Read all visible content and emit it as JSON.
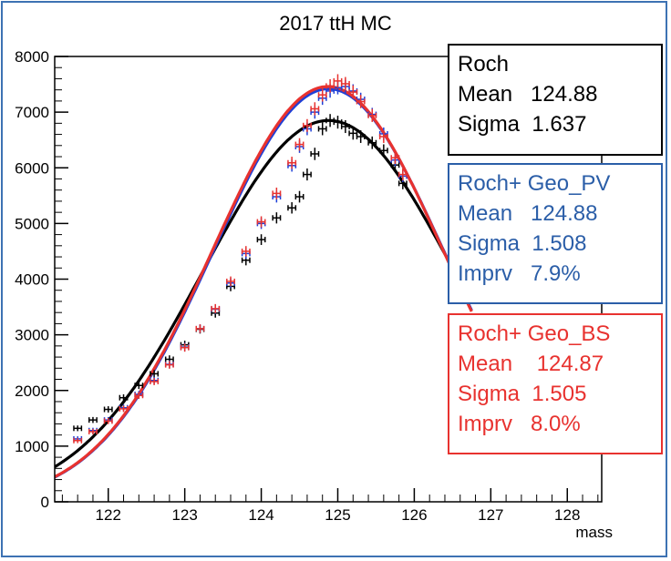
{
  "chart_data": {
    "type": "scatter",
    "title": "2017 ttH MC",
    "xlabel": "mass",
    "ylabel": "",
    "xlim": [
      121.3,
      128.45
    ],
    "ylim": [
      0,
      8000
    ],
    "x_ticks": [
      "122",
      "123",
      "124",
      "125",
      "126",
      "127",
      "128"
    ],
    "y_ticks": [
      "0",
      "1000",
      "2000",
      "3000",
      "4000",
      "5000",
      "6000",
      "7000",
      "8000"
    ],
    "grid": false,
    "series": [
      {
        "name": "Roch",
        "color": "#000000",
        "fit": {
          "mean": 124.88,
          "sigma": 1.637,
          "peak": 6850,
          "x_range": [
            121.3,
            126.75
          ]
        },
        "points": [
          [
            121.6,
            1320
          ],
          [
            121.8,
            1470
          ],
          [
            122.0,
            1660
          ],
          [
            122.2,
            1870
          ],
          [
            122.4,
            2090
          ],
          [
            122.6,
            2300
          ],
          [
            122.8,
            2560
          ],
          [
            123.0,
            2820
          ],
          [
            123.2,
            3100
          ],
          [
            123.4,
            3390
          ],
          [
            123.6,
            3870
          ],
          [
            123.8,
            4340
          ],
          [
            124.0,
            4710
          ],
          [
            124.2,
            5100
          ],
          [
            124.4,
            5280
          ],
          [
            124.5,
            5480
          ],
          [
            124.6,
            5880
          ],
          [
            124.7,
            6250
          ],
          [
            124.8,
            6700
          ],
          [
            124.9,
            6850
          ],
          [
            125.0,
            6820
          ],
          [
            125.1,
            6740
          ],
          [
            125.2,
            6620
          ],
          [
            125.3,
            6560
          ],
          [
            125.45,
            6450
          ],
          [
            125.6,
            6310
          ],
          [
            125.75,
            6050
          ],
          [
            125.85,
            5720
          ]
        ]
      },
      {
        "name": "Roch+ Geo_PV",
        "color": "#1f3fd6",
        "fit": {
          "mean": 124.88,
          "sigma": 1.508,
          "peak": 7420,
          "x_range": [
            121.3,
            126.75
          ]
        },
        "points": [
          [
            121.6,
            1130
          ],
          [
            121.8,
            1280
          ],
          [
            122.0,
            1470
          ],
          [
            122.2,
            1690
          ],
          [
            122.4,
            1930
          ],
          [
            122.6,
            2180
          ],
          [
            122.8,
            2470
          ],
          [
            123.0,
            2780
          ],
          [
            123.2,
            3110
          ],
          [
            123.4,
            3460
          ],
          [
            123.6,
            3930
          ],
          [
            123.8,
            4460
          ],
          [
            124.0,
            5000
          ],
          [
            124.2,
            5480
          ],
          [
            124.4,
            6040
          ],
          [
            124.5,
            6380
          ],
          [
            124.6,
            6700
          ],
          [
            124.7,
            7000
          ],
          [
            124.8,
            7250
          ],
          [
            124.9,
            7380
          ],
          [
            125.0,
            7440
          ],
          [
            125.1,
            7460
          ],
          [
            125.2,
            7380
          ],
          [
            125.3,
            7230
          ],
          [
            125.45,
            6960
          ],
          [
            125.6,
            6610
          ],
          [
            125.75,
            6140
          ],
          [
            125.85,
            5850
          ]
        ]
      },
      {
        "name": "Roch+ Geo_BS",
        "color": "#e8322f",
        "fit": {
          "mean": 124.87,
          "sigma": 1.505,
          "peak": 7460,
          "x_range": [
            121.3,
            126.75
          ]
        },
        "points": [
          [
            121.6,
            1100
          ],
          [
            121.8,
            1260
          ],
          [
            122.0,
            1450
          ],
          [
            122.2,
            1670
          ],
          [
            122.4,
            1910
          ],
          [
            122.6,
            2160
          ],
          [
            122.8,
            2460
          ],
          [
            123.0,
            2770
          ],
          [
            123.2,
            3110
          ],
          [
            123.4,
            3470
          ],
          [
            123.6,
            3960
          ],
          [
            123.8,
            4500
          ],
          [
            124.0,
            5030
          ],
          [
            124.2,
            5540
          ],
          [
            124.4,
            6090
          ],
          [
            124.5,
            6420
          ],
          [
            124.6,
            6760
          ],
          [
            124.7,
            7060
          ],
          [
            124.8,
            7310
          ],
          [
            124.9,
            7470
          ],
          [
            125.0,
            7560
          ],
          [
            125.1,
            7510
          ],
          [
            125.2,
            7360
          ],
          [
            125.3,
            7190
          ],
          [
            125.45,
            6940
          ],
          [
            125.6,
            6560
          ],
          [
            125.75,
            6180
          ],
          [
            125.85,
            5880
          ]
        ]
      }
    ],
    "stat_boxes": [
      {
        "border": "#000000",
        "text_color": "#000000",
        "lines": [
          "Roch",
          "Mean   124.88",
          "Sigma  1.637"
        ]
      },
      {
        "border": "#2b5ea8",
        "text_color": "#2b5ea8",
        "lines": [
          "Roch+ Geo_PV",
          "Mean   124.88",
          "Sigma  1.508",
          "Imprv   7.9%"
        ]
      },
      {
        "border": "#e8322f",
        "text_color": "#e8322f",
        "lines": [
          "Roch+ Geo_BS",
          "Mean    124.87",
          "Sigma  1.505",
          "Imprv   8.0%"
        ]
      }
    ]
  }
}
